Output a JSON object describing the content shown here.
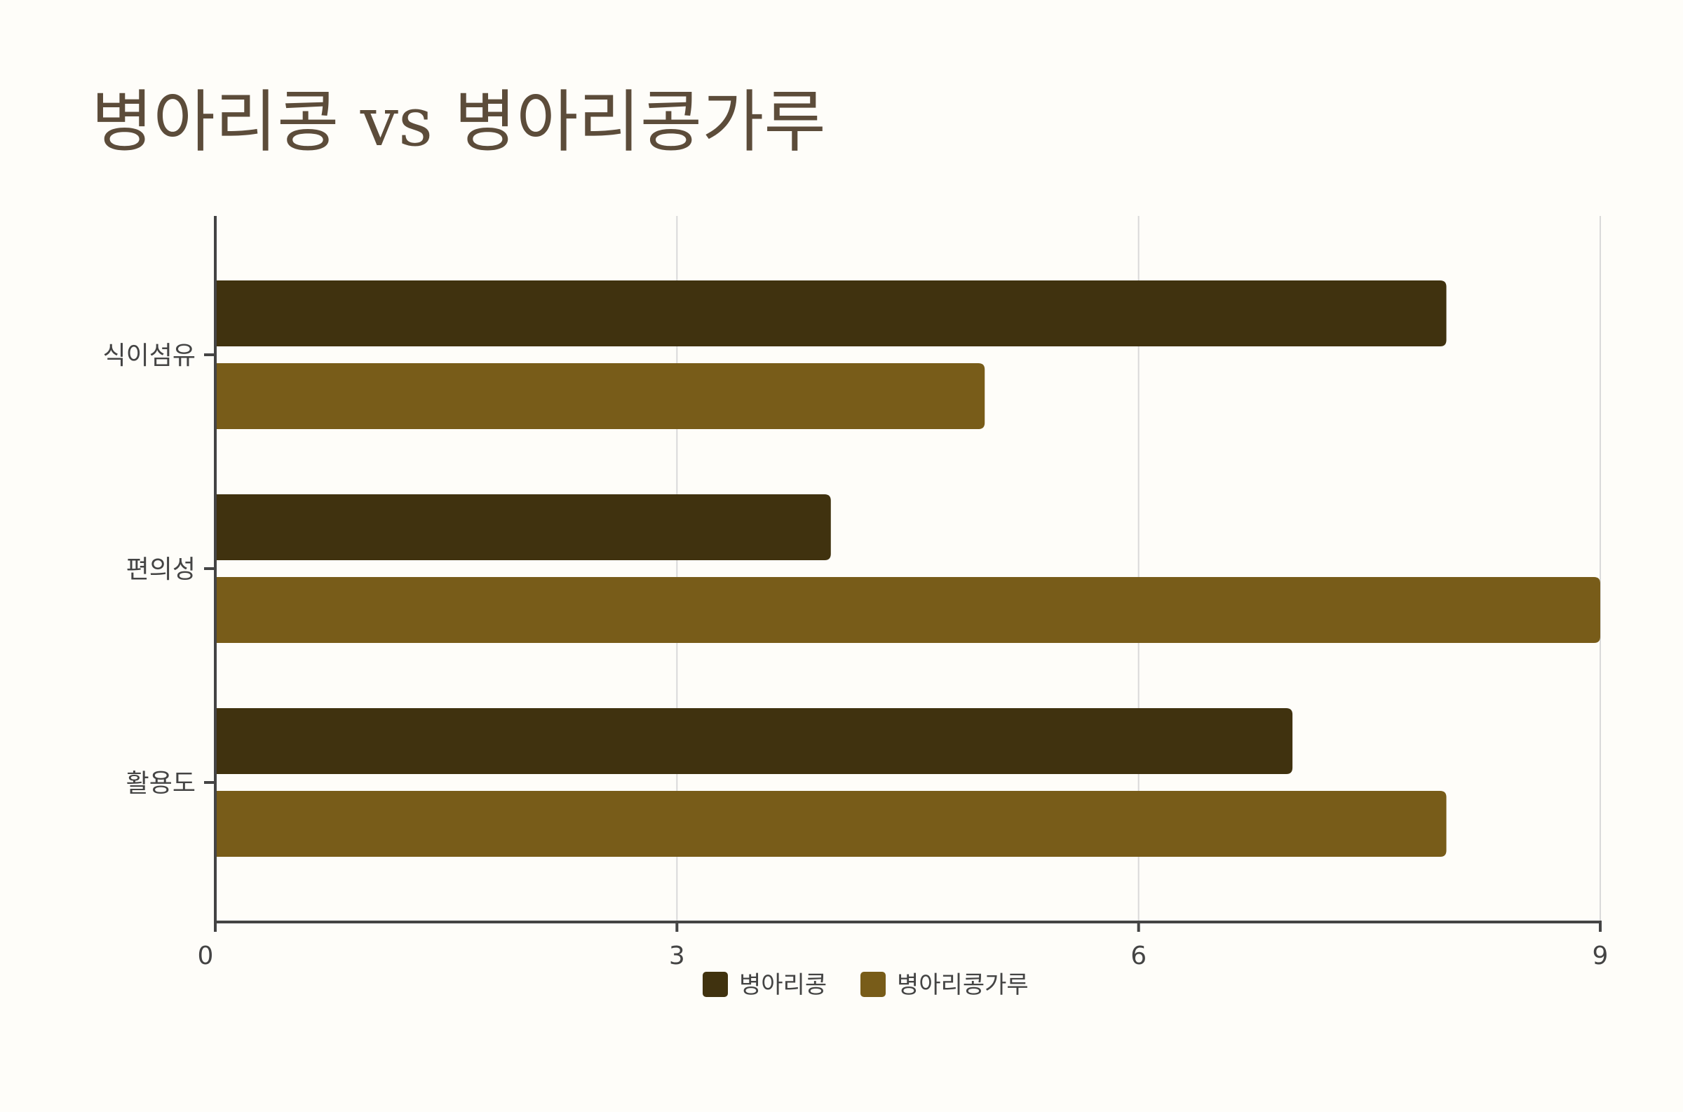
{
  "chart_data": {
    "type": "bar",
    "orientation": "horizontal",
    "title": "병아리콩 vs 병아리콩가루",
    "categories": [
      "식이섬유",
      "편의성",
      "활용도"
    ],
    "series": [
      {
        "name": "병아리콩",
        "values": [
          8,
          4,
          7
        ],
        "color": "#40320f"
      },
      {
        "name": "병아리콩가루",
        "values": [
          5,
          9,
          8
        ],
        "color": "#785c19"
      }
    ],
    "xlim": [
      0,
      9
    ],
    "xticks": [
      0,
      3,
      6,
      9
    ],
    "grid": true,
    "legend_position": "bottom-center"
  },
  "colors": {
    "background": "#fefdf9",
    "title": "#5c4c3a",
    "axis": "#444444",
    "grid": "#d9d9d9"
  }
}
